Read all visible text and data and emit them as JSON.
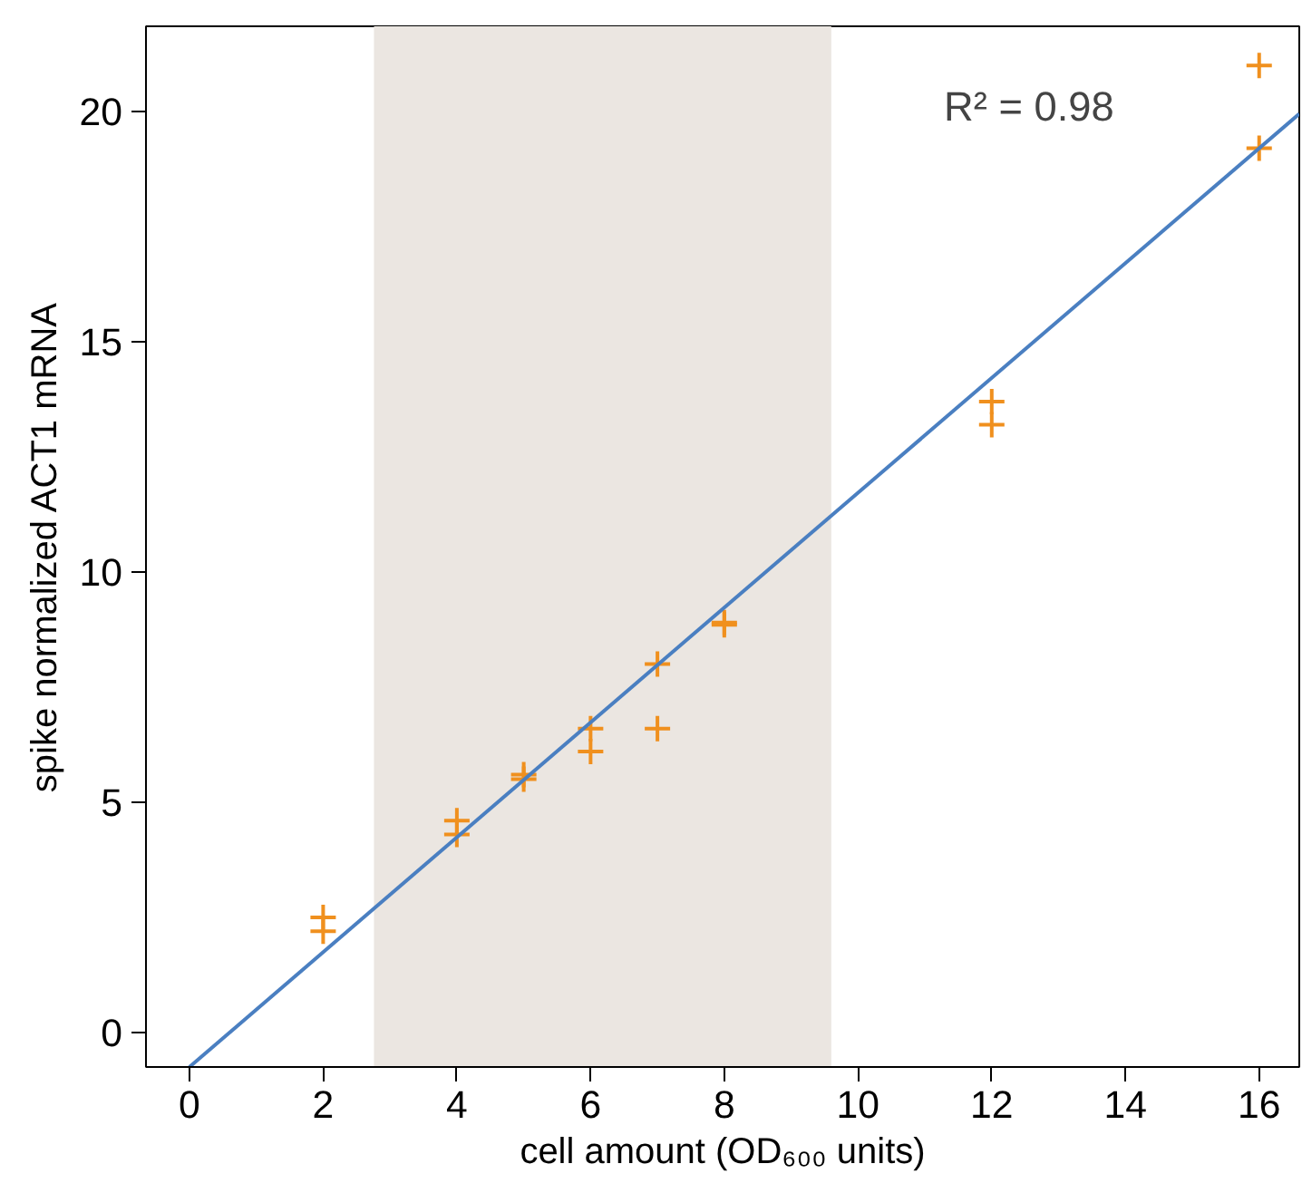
{
  "chart_data": {
    "type": "scatter",
    "xlabel": "cell amount (OD₆₀₀ units)",
    "ylabel": "spike normalized ACT1 mRNA",
    "xlim": [
      -0.65,
      16.6
    ],
    "ylim": [
      -0.75,
      21.85
    ],
    "xticks": [
      0,
      2,
      4,
      6,
      8,
      10,
      12,
      14,
      16
    ],
    "yticks": [
      0,
      5,
      10,
      15,
      20
    ],
    "x": [
      2,
      2,
      4,
      4,
      5,
      5,
      6,
      6,
      7,
      7,
      8,
      8,
      12,
      12,
      16,
      16
    ],
    "series": [
      {
        "color": "#f0901e",
        "marker": "cross",
        "values": [
          2.5,
          2.2,
          4.6,
          4.3,
          5.6,
          5.5,
          6.6,
          6.1,
          8.0,
          6.6,
          8.9,
          8.85,
          13.7,
          13.2,
          21.0,
          19.2
        ]
      },
      {
        "type": "line",
        "color": "#4a7fc1",
        "x": [
          0,
          16.6
        ],
        "values": [
          -0.75,
          19.95
        ]
      }
    ],
    "bands": [
      {
        "axis": "x",
        "from": 2.76,
        "to": 9.6,
        "color": "#ebe6e1"
      }
    ],
    "annotations": [
      "R² = 0.98"
    ],
    "grid": false
  }
}
